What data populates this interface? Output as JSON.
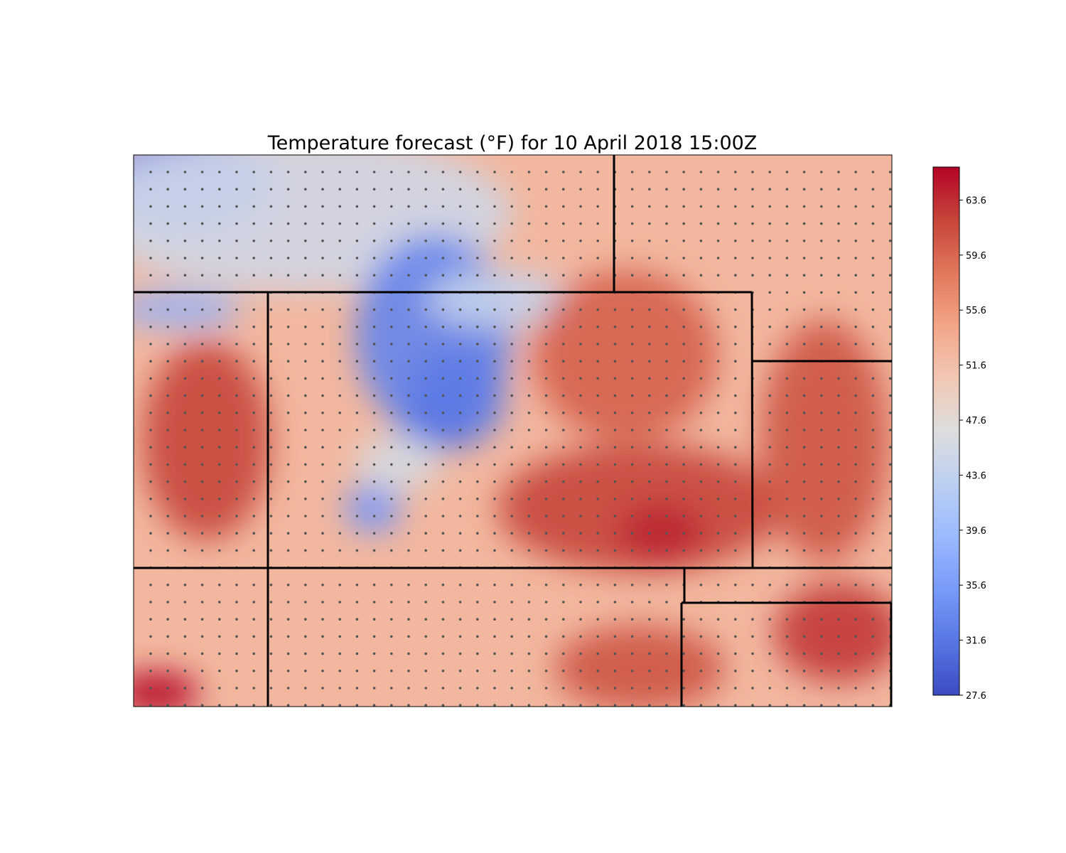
{
  "figure": {
    "title": "Temperature forecast (°F) for 10 April 2018 15:00Z"
  },
  "colorbar": {
    "colormap": "coolwarm",
    "range": [
      27.6,
      66.0
    ],
    "tick_labels": [
      "27.6",
      "31.6",
      "35.6",
      "39.6",
      "43.6",
      "47.6",
      "51.6",
      "55.6",
      "59.6",
      "63.6"
    ]
  },
  "map": {
    "field": "surface temperature (°F)",
    "background_level_f": 52.5,
    "station_dot_grid": {
      "columns": 44,
      "rows": 33
    },
    "colors": {
      "state_borders": "#000000",
      "station_dots": "#555555"
    },
    "warm_cold_features": [
      {
        "temp_f": 34,
        "region": "northwest corner"
      },
      {
        "temp_f": 45,
        "region": "northwest plains"
      },
      {
        "temp_f": 38,
        "region": "western panhandle band"
      },
      {
        "temp_f": 33,
        "region": "central mountains"
      },
      {
        "temp_f": 32,
        "region": "central mountains"
      },
      {
        "temp_f": 31,
        "region": "central mountains south"
      },
      {
        "temp_f": 35,
        "region": "southwest mountains"
      },
      {
        "temp_f": 44,
        "region": "mountain valley"
      },
      {
        "temp_f": 46,
        "region": "southern valley"
      },
      {
        "temp_f": 60,
        "region": "northeast plains"
      },
      {
        "temp_f": 62,
        "region": "southeast plains"
      },
      {
        "temp_f": 64,
        "region": "southeast plains"
      },
      {
        "temp_f": 61,
        "region": "eastern border"
      },
      {
        "temp_f": 62,
        "region": "southwest valley"
      },
      {
        "temp_f": 61,
        "region": "south"
      },
      {
        "temp_f": 63,
        "region": "southeast corner"
      },
      {
        "temp_f": 66,
        "region": "far southwest corner"
      }
    ]
  }
}
